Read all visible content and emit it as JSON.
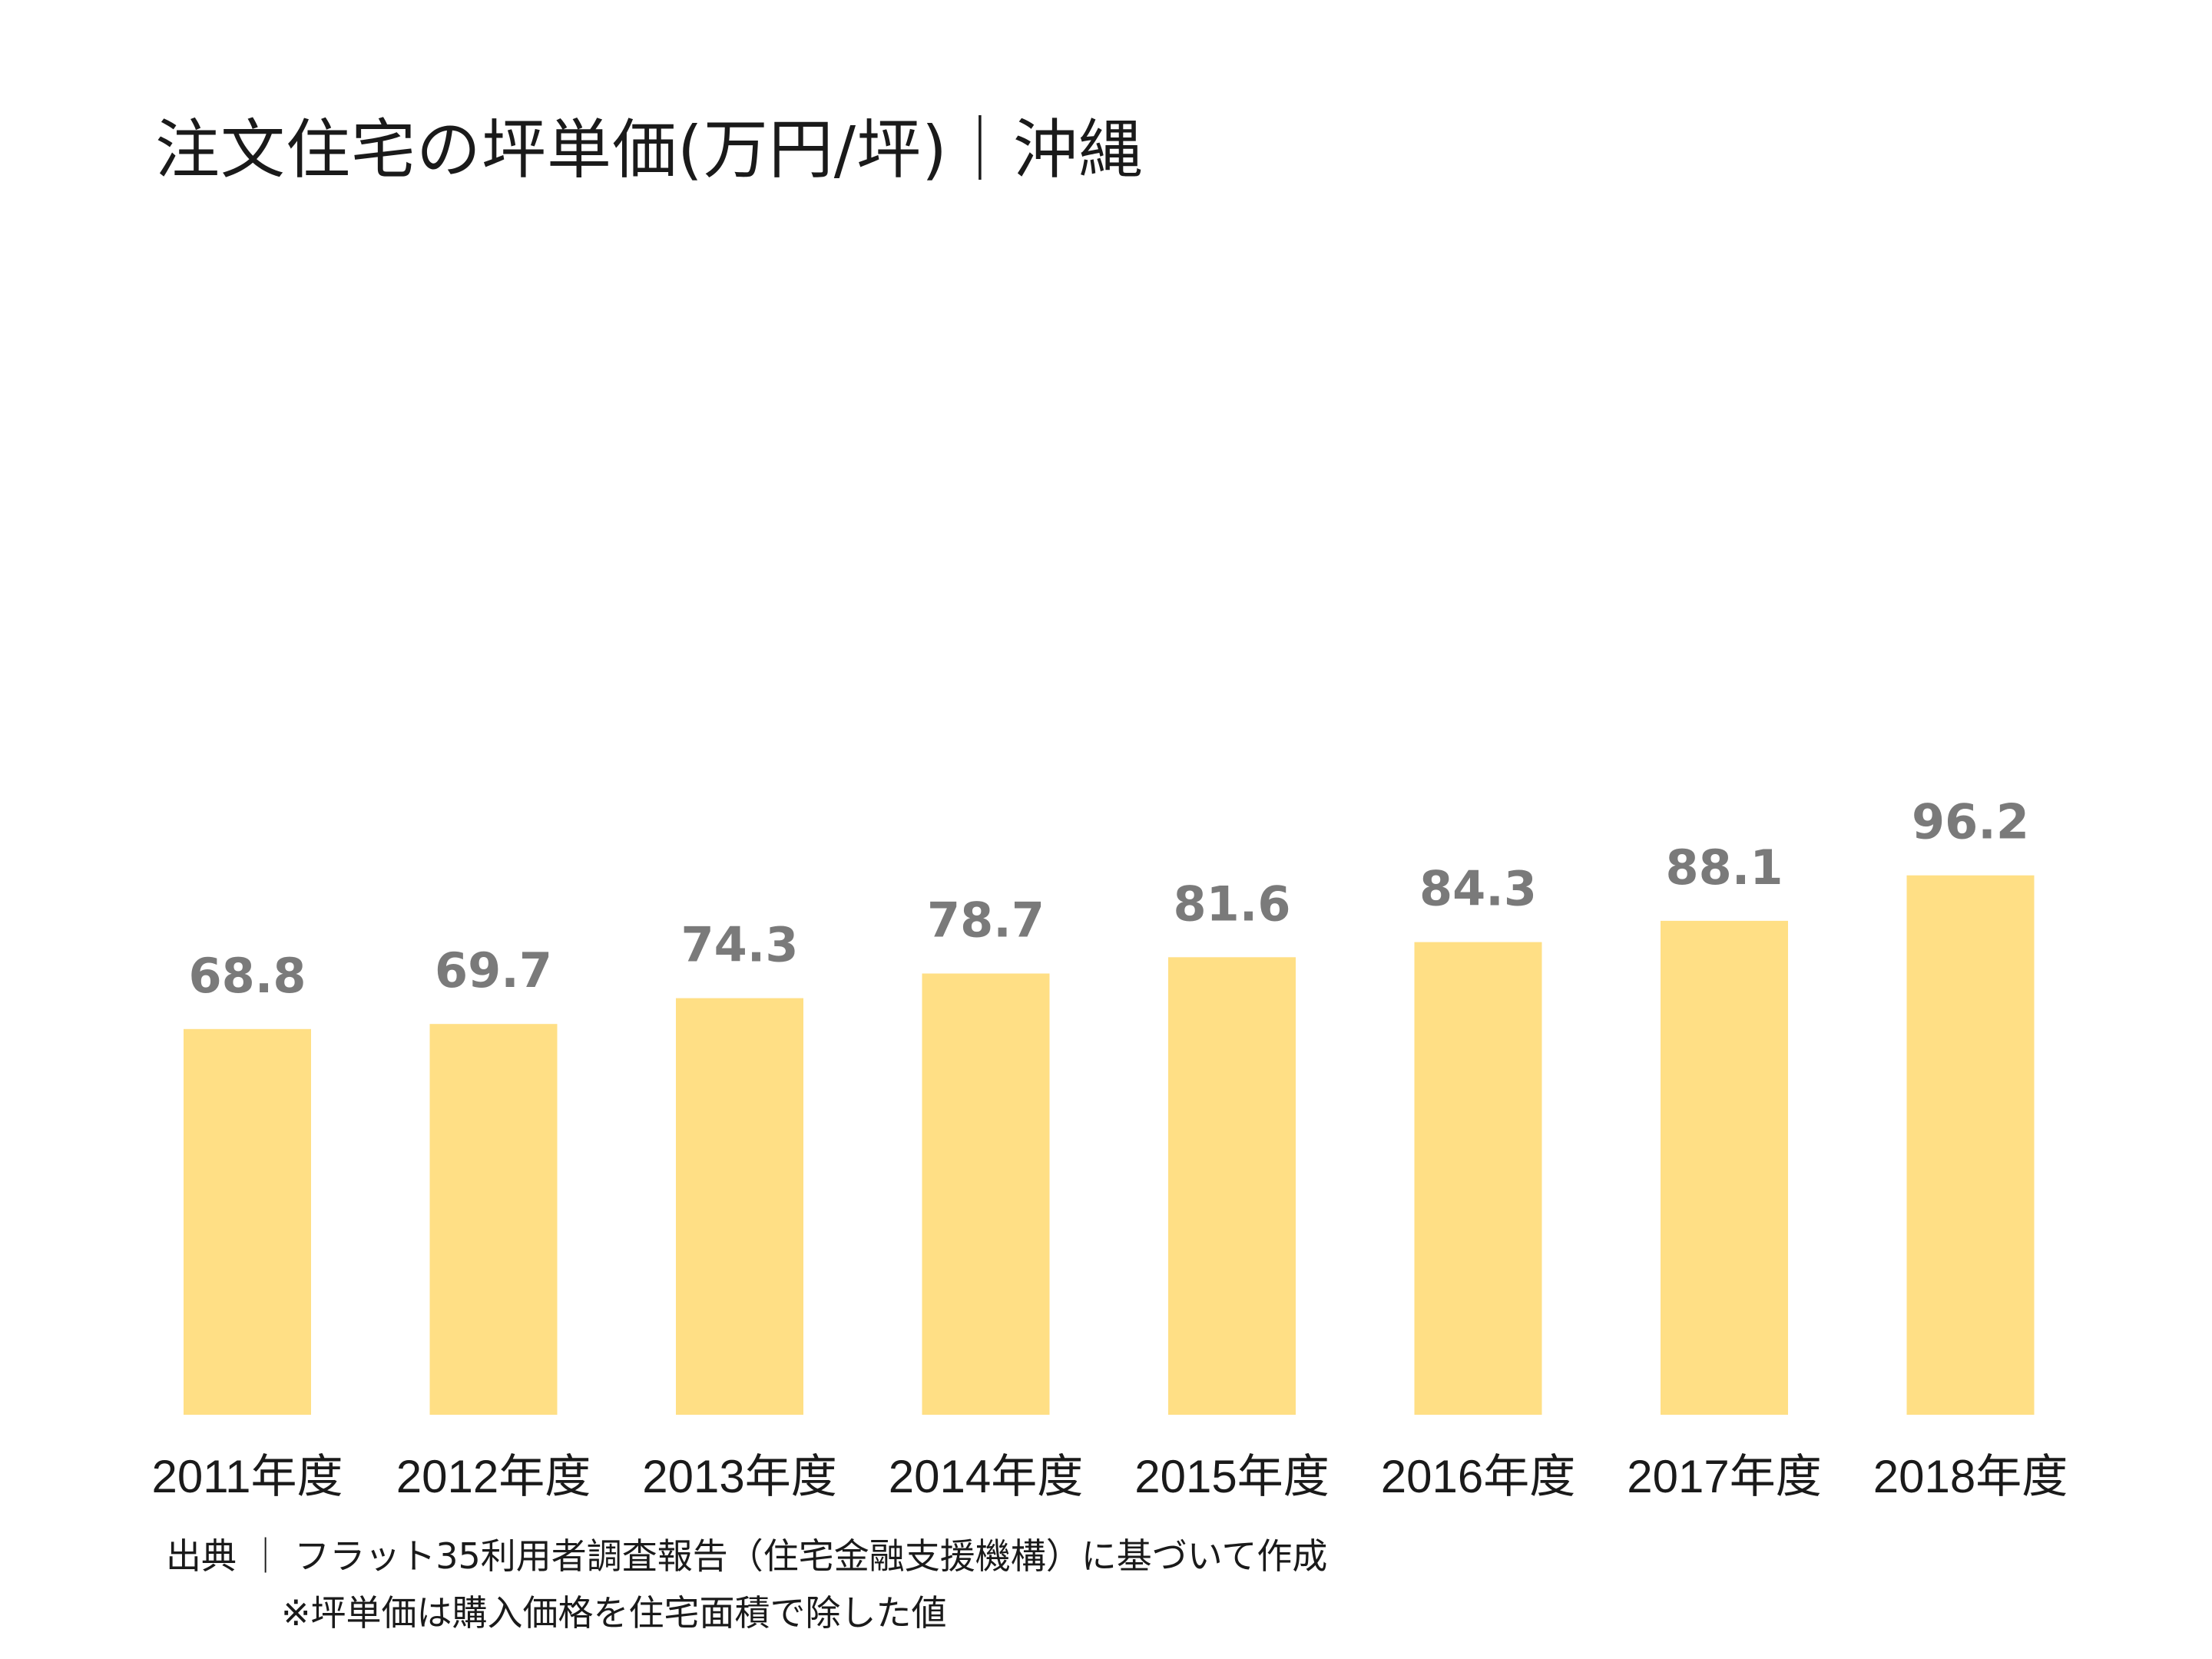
{
  "chart_data": {
    "type": "bar",
    "title": "注文住宅の坪単価(万円/坪)｜沖縄",
    "categories": [
      "2011年度",
      "2012年度",
      "2013年度",
      "2014年度",
      "2015年度",
      "2016年度",
      "2017年度",
      "2018年度"
    ],
    "values": [
      68.8,
      69.7,
      74.3,
      78.7,
      81.6,
      84.3,
      88.1,
      96.2
    ],
    "data_labels": [
      "68.8",
      "69.7",
      "74.3",
      "78.7",
      "81.6",
      "84.3",
      "88.1",
      "96.2"
    ],
    "xlabel": "",
    "ylabel": "",
    "ylim": [
      0,
      250
    ],
    "grid": false,
    "legend": "none",
    "colors": {
      "bar": "#FFDF85",
      "data_label": "#7A7A7A",
      "text": "#1A1A1A"
    }
  },
  "notes": {
    "source": "出典 ｜ フラット35利用者調査報告（住宅金融支援機構）に基づいて作成",
    "formula": "※坪単価は購入価格を住宅面積で除した値"
  }
}
